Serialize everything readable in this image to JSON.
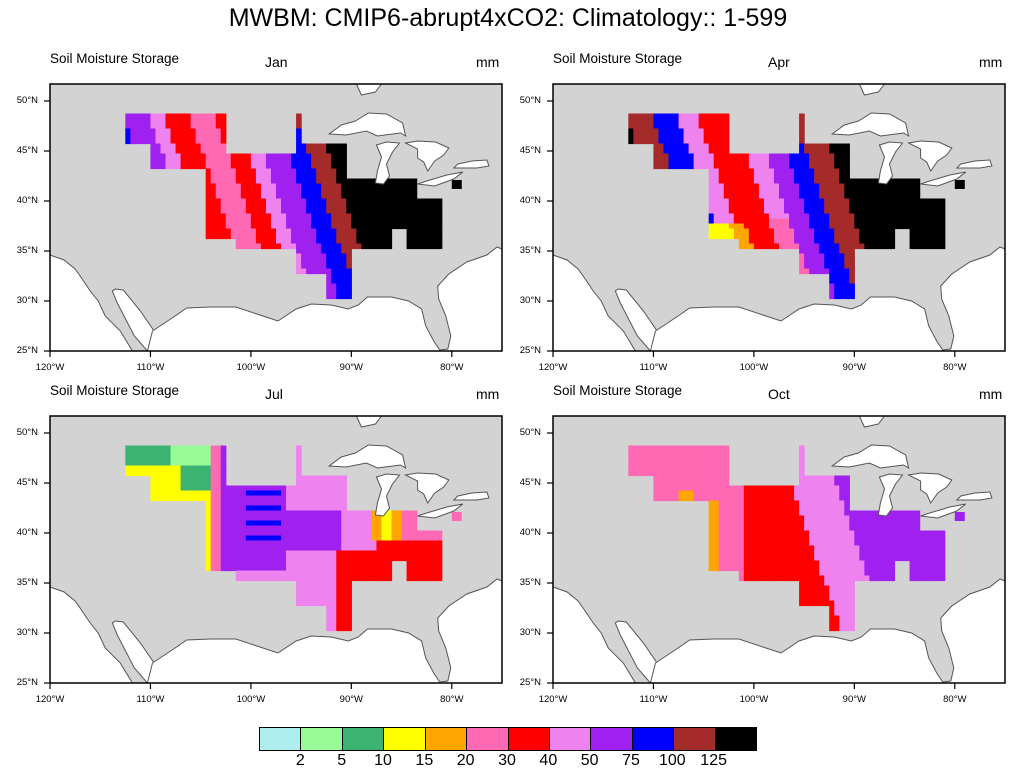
{
  "title": "MWBM: CMIP6-abrupt4xCO2: Climatology:: 1-599",
  "panels": [
    {
      "variable": "Soil Moisture Storage",
      "month": "Jan",
      "units": "mm"
    },
    {
      "variable": "Soil Moisture Storage",
      "month": "Apr",
      "units": "mm"
    },
    {
      "variable": "Soil Moisture Storage",
      "month": "Jul",
      "units": "mm"
    },
    {
      "variable": "Soil Moisture Storage",
      "month": "Oct",
      "units": "mm"
    }
  ],
  "lat_ticks": [
    "50°N",
    "45°N",
    "40°N",
    "35°N",
    "30°N",
    "25°N"
  ],
  "lon_ticks": [
    "120°W",
    "110°W",
    "100°W",
    "90°W",
    "80°W"
  ],
  "colorbar": {
    "labels": [
      "2",
      "5",
      "10",
      "15",
      "20",
      "30",
      "40",
      "50",
      "75",
      "100",
      "125"
    ],
    "colors": [
      "#afeeee",
      "#98fb98",
      "#3cb371",
      "#ffff00",
      "#ffa500",
      "#ff69b4",
      "#ff0000",
      "#ee82ee",
      "#a020f0",
      "#0000ff",
      "#a52a2a",
      "#000000"
    ]
  },
  "colors": {
    "land": "#d3d3d3",
    "water": "#ffffff",
    "coast": "#555555"
  },
  "chart_data": {
    "type": "heatmap",
    "title": "MWBM: CMIP6-abrupt4xCO2: Climatology:: 1-599",
    "variable": "Soil Moisture Storage",
    "units": "mm",
    "extent": {
      "lon": [
        -120,
        -75
      ],
      "lat": [
        25,
        51.7
      ]
    },
    "levels": [
      2,
      5,
      10,
      15,
      20,
      30,
      40,
      50,
      75,
      100,
      125
    ],
    "panels": [
      {
        "month": "Jan",
        "pattern": "west-to-east gradient: 50-75 in NW edge, 30-40 Great Plains, 50-125 in central band, >125 east of 90W"
      },
      {
        "month": "Apr",
        "pattern": "similar gradient; 15-20 pockets in southern plains; >125 east of 90W"
      },
      {
        "month": "Jul",
        "pattern": "driest season: <2-20 in northern plains, 30-75 mixed in central, 30-40 across east"
      },
      {
        "month": "Oct",
        "pattern": "20-30 in plains, 30-40 central, 50-75 in Ohio valley"
      }
    ]
  }
}
